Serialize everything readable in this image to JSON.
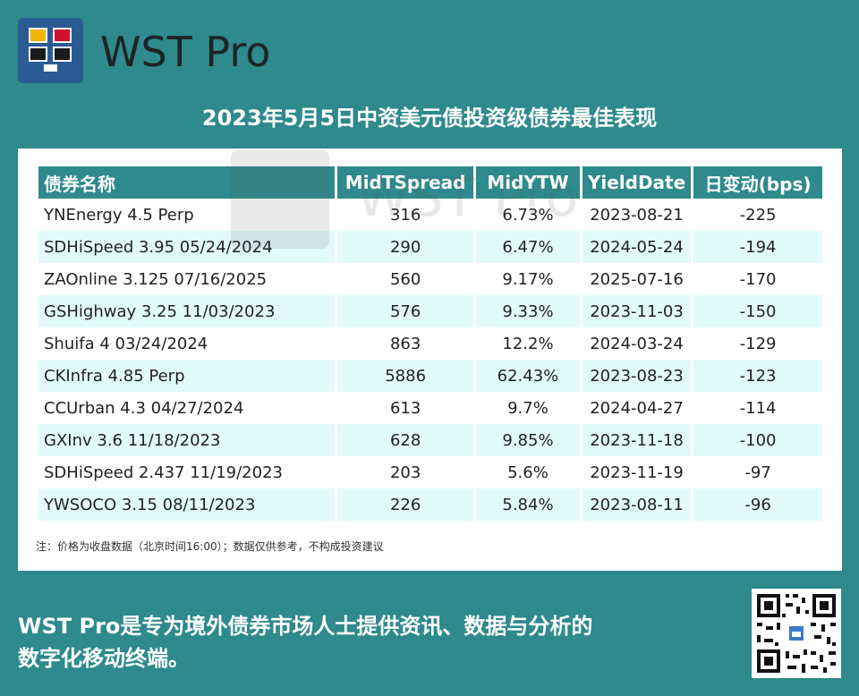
{
  "brand": {
    "name": "WST Pro",
    "logo_icon": "monitor-grid-logo-icon"
  },
  "title": "2023年5月5日中资美元债投资级债券最佳表现",
  "table": {
    "headers": [
      "债券名称",
      "MidTSpread",
      "MidYTW",
      "YieldDate",
      "日变动(bps)"
    ],
    "rows": [
      [
        "YNEnergy 4.5 Perp",
        "316",
        "6.73%",
        "2023-08-21",
        "-225"
      ],
      [
        "SDHiSpeed 3.95 05/24/2024",
        "290",
        "6.47%",
        "2024-05-24",
        "-194"
      ],
      [
        "ZAOnline 3.125 07/16/2025",
        "560",
        "9.17%",
        "2025-07-16",
        "-170"
      ],
      [
        "GSHighway 3.25 11/03/2023",
        "576",
        "9.33%",
        "2023-11-03",
        "-150"
      ],
      [
        "Shuifa 4 03/24/2024",
        "863",
        "12.2%",
        "2024-03-24",
        "-129"
      ],
      [
        "CKInfra 4.85 Perp",
        "5886",
        "62.43%",
        "2023-08-23",
        "-123"
      ],
      [
        "CCUrban 4.3 04/27/2024",
        "613",
        "9.7%",
        "2024-04-27",
        "-114"
      ],
      [
        "GXInv 3.6 11/18/2023",
        "628",
        "9.85%",
        "2023-11-18",
        "-100"
      ],
      [
        "SDHiSpeed 2.437 11/19/2023",
        "203",
        "5.6%",
        "2023-11-19",
        "-97"
      ],
      [
        "YWSOCO 3.15 08/11/2023",
        "226",
        "5.84%",
        "2023-08-11",
        "-96"
      ]
    ]
  },
  "note": "注：价格为收盘数据（北京时间16:00）；数据仅供参考，不构成投资建议",
  "watermark": "WST Pro",
  "footer": {
    "line1": "WST Pro是专为境外债券市场人士提供资讯、数据与分析的",
    "line2": "数字化移动终端。"
  },
  "colors": {
    "background": "#2e8a8c",
    "header_bg": "#2e8a8c",
    "alt_row": "#e3fafc",
    "logo_bg": "#2a5c93"
  }
}
